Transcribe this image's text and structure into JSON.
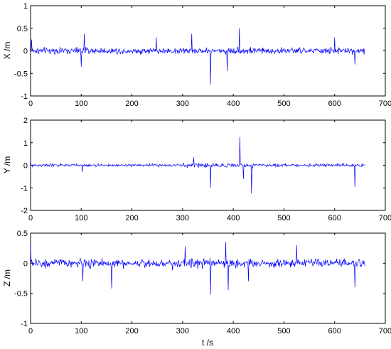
{
  "chart_data": [
    {
      "type": "line",
      "xlabel": "",
      "ylabel": "X /m",
      "xlim": [
        0,
        700
      ],
      "ylim": [
        -1,
        1
      ],
      "xticks": [
        0,
        100,
        200,
        300,
        400,
        500,
        600,
        700
      ],
      "yticks": [
        -1,
        -0.5,
        0,
        0.5,
        1
      ],
      "xtick_labels": [
        "0",
        "100",
        "200",
        "300",
        "400",
        "500",
        "600",
        "700"
      ],
      "ytick_labels": [
        "-1",
        "-0.5",
        "0",
        "0.5",
        "1"
      ],
      "grid": false,
      "color": "#0000ff",
      "series": [
        {
          "x": [
            0,
            660
          ],
          "description": "noisy displacement signal, roughly within ±0.3 m, peaks near 410 s (+0.5) and 360 s (-0.75)"
        }
      ]
    },
    {
      "type": "line",
      "xlabel": "",
      "ylabel": "Y /m",
      "xlim": [
        0,
        700
      ],
      "ylim": [
        -2,
        2
      ],
      "xticks": [
        0,
        100,
        200,
        300,
        400,
        500,
        600,
        700
      ],
      "yticks": [
        -2,
        -1,
        0,
        1,
        2
      ],
      "xtick_labels": [
        "0",
        "100",
        "200",
        "300",
        "400",
        "500",
        "600",
        "700"
      ],
      "ytick_labels": [
        "-2",
        "-1",
        "0",
        "1",
        "2"
      ],
      "grid": false,
      "color": "#0000ff"
    },
    {
      "type": "line",
      "xlabel": "t /s",
      "ylabel": "Z /m",
      "xlim": [
        0,
        700
      ],
      "ylim": [
        -1,
        0.5
      ],
      "xticks": [
        0,
        100,
        200,
        300,
        400,
        500,
        600,
        700
      ],
      "yticks": [
        -1,
        -0.5,
        0,
        0.5
      ],
      "xtick_labels": [
        "0",
        "100",
        "200",
        "300",
        "400",
        "500",
        "600",
        "700"
      ],
      "ytick_labels": [
        "-1",
        "-0.5",
        "0",
        "0.5"
      ],
      "grid": false,
      "color": "#0000ff"
    }
  ]
}
